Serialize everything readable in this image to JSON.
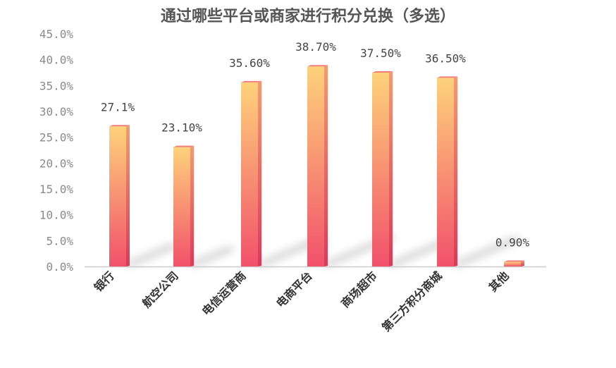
{
  "chart_data": {
    "type": "bar",
    "title": "通过哪些平台或商家进行积分兑换（多选）",
    "xlabel": "",
    "ylabel": "",
    "categories": [
      "银行",
      "航空公司",
      "电信运营商",
      "电商平台",
      "商场超市",
      "第三方积分商城",
      "其他"
    ],
    "values": [
      27.1,
      23.1,
      35.6,
      38.7,
      37.5,
      36.5,
      0.9
    ],
    "value_labels": [
      "27.1%",
      "23.10%",
      "35.60%",
      "38.70%",
      "37.50%",
      "36.50%",
      "0.90%"
    ],
    "ylim": [
      0,
      45
    ],
    "yticks": [
      0,
      5,
      10,
      15,
      20,
      25,
      30,
      35,
      40,
      45
    ],
    "ytick_labels": [
      "0.0%",
      "5.0%",
      "10.0%",
      "15.0%",
      "20.0%",
      "25.0%",
      "30.0%",
      "35.0%",
      "40.0%",
      "45.0%"
    ],
    "grid": false,
    "legend": "none",
    "colors": {
      "bar_top": "#FDD27A",
      "bar_bottom": "#F2516B",
      "bar_side_top": "#F39A73",
      "bar_side_bottom": "#D73C58",
      "bar_cap": "#F47B7B",
      "axis": "#cccccc"
    }
  }
}
